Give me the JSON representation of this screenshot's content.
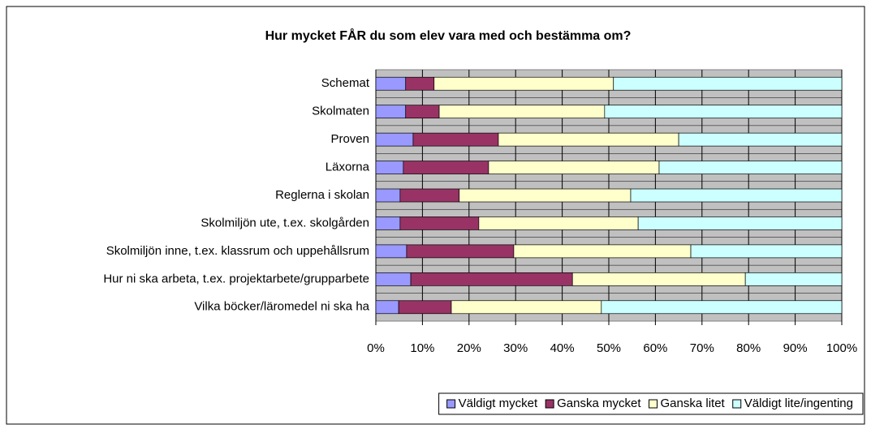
{
  "chart_data": {
    "type": "stacked_barh",
    "title": "Hur mycket FÅR du som elev vara med och bestämma om?",
    "categories": [
      "Schemat",
      "Skolmaten",
      "Proven",
      "Läxorna",
      "Reglerna i skolan",
      "Skolmiljön ute, t.ex. skolgården",
      "Skolmiljön inne, t.ex. klassrum och uppehållsrum",
      "Hur ni ska arbeta, t.ex. projektarbete/grupparbete",
      "Vilka böcker/läromedel ni ska ha"
    ],
    "series": [
      {
        "name": "Väldigt mycket",
        "color": "#9999ff",
        "values": [
          6.4,
          6.4,
          8,
          5.9,
          5.2,
          5.2,
          6.6,
          7.5,
          4.9
        ]
      },
      {
        "name": "Ganska mycket",
        "color": "#993366",
        "values": [
          6.1,
          7.2,
          18.3,
          18.3,
          12.7,
          16.9,
          23,
          34.7,
          11.3
        ]
      },
      {
        "name": "Ganska litet",
        "color": "#ffffcc",
        "values": [
          38.5,
          35.5,
          38.7,
          36.6,
          36.8,
          34.2,
          38,
          37.1,
          32.2
        ]
      },
      {
        "name": "Väldigt lite/ingenting",
        "color": "#ccffff",
        "values": [
          49,
          50.9,
          35,
          39.2,
          45.3,
          43.7,
          32.4,
          20.7,
          51.6
        ]
      }
    ],
    "xlim": [
      0,
      100
    ],
    "xticks": [
      {
        "value": 0,
        "label": "0%"
      },
      {
        "value": 10,
        "label": "10%"
      },
      {
        "value": 20,
        "label": "20%"
      },
      {
        "value": 30,
        "label": "30%"
      },
      {
        "value": 40,
        "label": "40%"
      },
      {
        "value": 50,
        "label": "50%"
      },
      {
        "value": 60,
        "label": "60%"
      },
      {
        "value": 70,
        "label": "70%"
      },
      {
        "value": 80,
        "label": "80%"
      },
      {
        "value": 90,
        "label": "90%"
      },
      {
        "value": 100,
        "label": "100%"
      }
    ],
    "grid": true,
    "legend": "bottom"
  }
}
